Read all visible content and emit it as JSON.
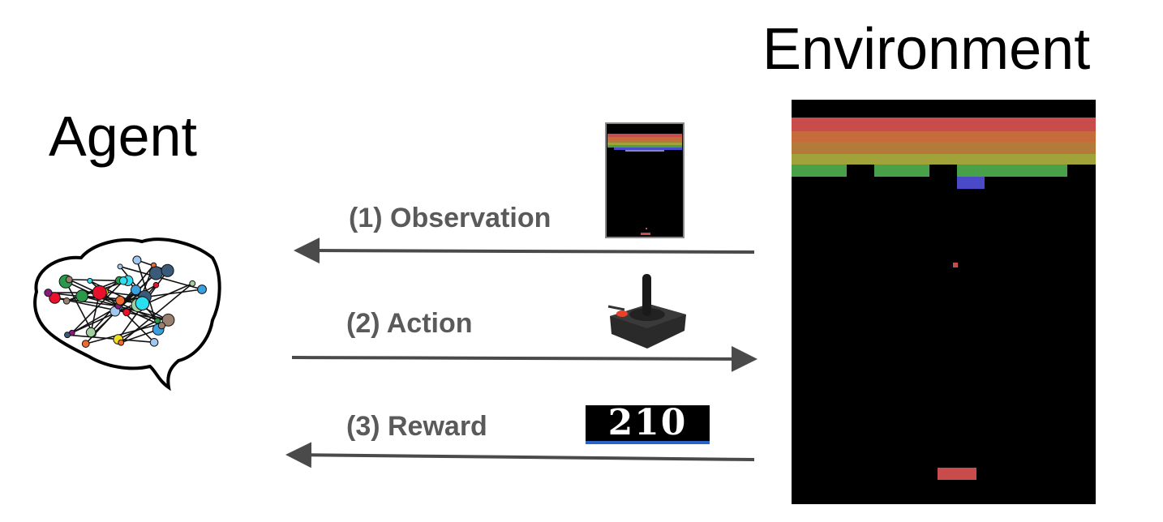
{
  "agent": {
    "title": "Agent",
    "icon": "brain-network-icon"
  },
  "environment": {
    "title": "Environment",
    "game": "breakout",
    "colors": {
      "background": "#000000",
      "rows": [
        "#c84c4c",
        "#c66c3a",
        "#b47a3a",
        "#a2a23a",
        "#48a048"
      ],
      "blue_brick": "#4a4ac8",
      "paddle": "#c84c4c"
    }
  },
  "steps": [
    {
      "label": "(1) Observation",
      "direction": "environment-to-agent",
      "icon": "game-screen-thumbnail"
    },
    {
      "label": "(2) Action",
      "direction": "agent-to-environment",
      "icon": "joystick-icon"
    },
    {
      "label": "(3) Reward",
      "direction": "environment-to-agent",
      "icon": "score-display",
      "value": "210"
    }
  ],
  "arrow_color": "#4a4a4a"
}
